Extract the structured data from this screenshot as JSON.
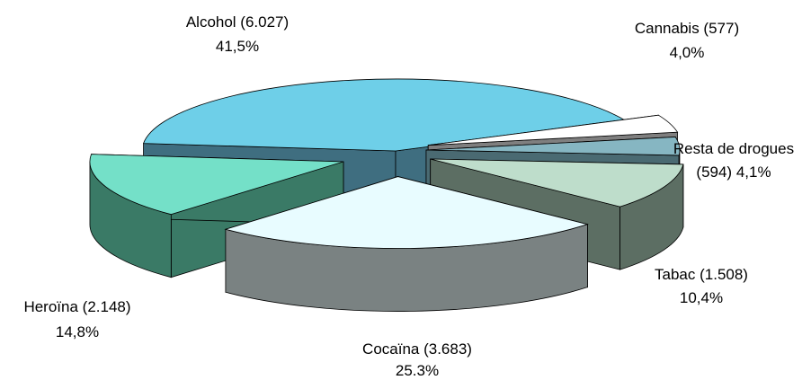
{
  "chart_data": {
    "type": "pie",
    "style": "3d-exploded",
    "title": "",
    "slices": [
      {
        "name": "Alcohol",
        "count": "6.027",
        "value": 6027,
        "percent": "41,5%",
        "label_line1": "Alcohol (6.027)",
        "label_line2": "41,5%",
        "top_color": "#6ECFE8",
        "side_color": "#3F6E80"
      },
      {
        "name": "Cannabis",
        "count": "577",
        "value": 577,
        "percent": "4,0%",
        "label_line1": "Cannabis (577)",
        "label_line2": "4,0%",
        "top_color": "#FFFFFF",
        "side_color": "#7F7F7F"
      },
      {
        "name": "Resta de drogues",
        "count": "594",
        "value": 594,
        "percent": "4,1%",
        "label_line1": "Resta de drogues",
        "label_line2": "(594) 4,1%",
        "top_color": "#86B6C2",
        "side_color": "#4A6A72"
      },
      {
        "name": "Tabac",
        "count": "1.508",
        "value": 1508,
        "percent": "10,4%",
        "label_line1": "Tabac (1.508)",
        "label_line2": "10,4%",
        "top_color": "#BEDDCB",
        "side_color": "#5C6E63"
      },
      {
        "name": "Cocaïna",
        "count": "3.683",
        "value": 3683,
        "percent": "25.3%",
        "label_line1": "Cocaïna (3.683)",
        "label_line2": "25.3%",
        "top_color": "#E8FCFF",
        "side_color": "#7A8282"
      },
      {
        "name": "Heroïna",
        "count": "2.148",
        "value": 2148,
        "percent": "14,8%",
        "label_line1": "Heroïna (2.148)",
        "label_line2": "14,8%",
        "top_color": "#74E0C8",
        "side_color": "#3A7A66"
      }
    ]
  }
}
